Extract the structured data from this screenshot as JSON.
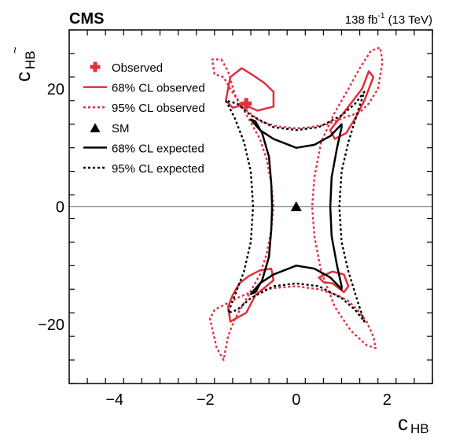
{
  "chart_data": {
    "type": "line",
    "header": {
      "experiment": "CMS",
      "lumi_value": "138 fb",
      "lumi_exp": "-1",
      "lumi_energy": " (13 TeV)"
    },
    "xlabel": {
      "main": "c",
      "sub": "HB"
    },
    "ylabel": {
      "main": "c",
      "sub": "HB",
      "tilde": "~"
    },
    "xlim": [
      -5,
      3
    ],
    "ylim": [
      -30,
      30
    ],
    "x_ticks": [
      -4,
      -2,
      0,
      2
    ],
    "x_tick_labels": [
      "−4",
      "−2",
      "0",
      "2"
    ],
    "y_ticks": [
      -20,
      0,
      20
    ],
    "y_tick_labels": [
      "−20",
      "0",
      "20"
    ],
    "grid": false,
    "legend_position": "top-left",
    "colors": {
      "observed": "#e0303c",
      "expected": "#000000",
      "zero_line": "#888888"
    },
    "legend": [
      {
        "label": "Observed",
        "marker": "cross",
        "color": "#e0303c"
      },
      {
        "label": "68% CL observed",
        "style": "solid",
        "color": "#e0303c"
      },
      {
        "label": "95% CL observed",
        "style": "dotted",
        "color": "#e0303c"
      },
      {
        "label": "SM",
        "marker": "triangle",
        "color": "#000000"
      },
      {
        "label": "68% CL expected",
        "style": "solid",
        "color": "#000000"
      },
      {
        "label": "95% CL expected",
        "style": "dotted",
        "color": "#000000"
      }
    ],
    "best_fit": {
      "x": -1.1,
      "y": 17.5
    },
    "sm_point": {
      "x": 0,
      "y": 0
    },
    "contours": [
      {
        "name": "68% CL observed",
        "style": "solid",
        "color": "#e0303c",
        "paths": [
          [
            [
              -1.55,
              18
            ],
            [
              -1.45,
              22
            ],
            [
              -1.2,
              23.5
            ],
            [
              -0.95,
              22.3
            ],
            [
              -0.7,
              21
            ],
            [
              -0.5,
              19.5
            ],
            [
              -0.5,
              17
            ],
            [
              -0.85,
              16.3
            ],
            [
              -1.15,
              17.3
            ],
            [
              -1.4,
              16.8
            ],
            [
              -1.55,
              18
            ]
          ],
          [
            [
              0.75,
              13
            ],
            [
              0.95,
              15
            ],
            [
              1.15,
              17
            ],
            [
              1.45,
              20
            ],
            [
              1.6,
              23
            ],
            [
              1.7,
              22
            ],
            [
              1.5,
              18
            ],
            [
              1.3,
              15
            ],
            [
              1.1,
              12.5
            ],
            [
              0.85,
              11.5
            ],
            [
              0.75,
              13
            ]
          ],
          [
            [
              -1.4,
              -15
            ],
            [
              -1.25,
              -13
            ],
            [
              -1.05,
              -11.8
            ],
            [
              -0.8,
              -10.8
            ],
            [
              -0.55,
              -10.5
            ],
            [
              -0.5,
              -12.5
            ],
            [
              -0.9,
              -15
            ],
            [
              -1.1,
              -18
            ],
            [
              -1.45,
              -19.5
            ],
            [
              -1.5,
              -17
            ],
            [
              -1.4,
              -15
            ]
          ],
          [
            [
              0.5,
              -12
            ],
            [
              0.8,
              -11
            ],
            [
              1.05,
              -11.5
            ],
            [
              1.15,
              -13.5
            ],
            [
              1.05,
              -14.5
            ],
            [
              0.8,
              -13
            ],
            [
              0.6,
              -12.8
            ],
            [
              0.5,
              -12
            ]
          ]
        ]
      },
      {
        "name": "95% CL observed",
        "style": "dotted",
        "color": "#e0303c",
        "paths": [
          [
            [
              -1.65,
              25
            ],
            [
              -1.5,
              23
            ],
            [
              -1.35,
              19
            ],
            [
              -1.05,
              15
            ],
            [
              -0.8,
              11.5
            ],
            [
              -0.65,
              8
            ],
            [
              -0.55,
              4
            ],
            [
              -0.5,
              0
            ],
            [
              -0.55,
              -4
            ],
            [
              -0.65,
              -8
            ],
            [
              -0.8,
              -11.5
            ],
            [
              -1.05,
              -15
            ],
            [
              -1.35,
              -19
            ],
            [
              -1.5,
              -22
            ],
            [
              -1.6,
              -26
            ],
            [
              -1.75,
              -24
            ],
            [
              -1.9,
              -19
            ],
            [
              -1.8,
              -17.5
            ],
            [
              -1.55,
              -16.5
            ],
            [
              -1.3,
              -15.5
            ],
            [
              -1.0,
              -14.5
            ],
            [
              -0.5,
              -13.8
            ],
            [
              0,
              -13.5
            ],
            [
              0.5,
              -14
            ],
            [
              0.9,
              -15
            ],
            [
              1.15,
              -16
            ],
            [
              1.35,
              -17.5
            ],
            [
              1.55,
              -19.5
            ],
            [
              1.7,
              -22
            ],
            [
              1.75,
              -24
            ],
            [
              1.55,
              -23.5
            ],
            [
              1.2,
              -21
            ],
            [
              0.85,
              -17
            ],
            [
              0.55,
              -11
            ],
            [
              0.4,
              -5
            ],
            [
              0.35,
              0
            ],
            [
              0.4,
              5
            ],
            [
              0.55,
              11
            ],
            [
              0.85,
              16
            ],
            [
              1.15,
              20
            ],
            [
              1.4,
              23.5
            ],
            [
              1.65,
              26.5
            ],
            [
              1.85,
              27
            ],
            [
              1.9,
              24.5
            ],
            [
              1.8,
              20
            ],
            [
              1.6,
              17.5
            ],
            [
              1.4,
              16
            ],
            [
              1.2,
              15.5
            ],
            [
              1.0,
              15
            ],
            [
              0.7,
              14
            ],
            [
              0.3,
              13.5
            ],
            [
              0,
              13.3
            ],
            [
              -0.4,
              13.6
            ],
            [
              -0.8,
              14.5
            ],
            [
              -1.2,
              17
            ],
            [
              -1.45,
              20
            ],
            [
              -1.6,
              22
            ],
            [
              -1.8,
              22.5
            ],
            [
              -1.85,
              25
            ],
            [
              -1.65,
              25
            ]
          ]
        ]
      },
      {
        "name": "68% CL expected",
        "style": "solid",
        "color": "#000000",
        "paths": [
          [
            [
              -0.9,
              14.5
            ],
            [
              -0.75,
              12.5
            ],
            [
              -0.6,
              8.5
            ],
            [
              -0.55,
              4
            ],
            [
              -0.53,
              0
            ],
            [
              -0.55,
              -4
            ],
            [
              -0.6,
              -8.5
            ],
            [
              -0.75,
              -12.5
            ],
            [
              -0.9,
              -14.5
            ],
            [
              -1.0,
              -14.8
            ],
            [
              -0.8,
              -13
            ],
            [
              -0.5,
              -11.5
            ],
            [
              0,
              -10
            ],
            [
              0.4,
              -10.5
            ],
            [
              0.75,
              -12
            ],
            [
              1.0,
              -14
            ],
            [
              1.0,
              -13.5
            ],
            [
              0.9,
              -10
            ],
            [
              0.78,
              -5
            ],
            [
              0.75,
              0
            ],
            [
              0.78,
              5
            ],
            [
              0.9,
              10
            ],
            [
              1.0,
              13.5
            ],
            [
              1.0,
              14
            ],
            [
              0.75,
              12
            ],
            [
              0.4,
              10.5
            ],
            [
              0,
              10
            ],
            [
              -0.5,
              11.5
            ],
            [
              -0.8,
              13
            ],
            [
              -1.0,
              14.8
            ],
            [
              -0.9,
              14.5
            ]
          ]
        ]
      },
      {
        "name": "95% CL expected",
        "style": "dotted",
        "color": "#000000",
        "paths": [
          [
            [
              -1.55,
              18
            ],
            [
              -1.35,
              15
            ],
            [
              -1.15,
              11
            ],
            [
              -1.0,
              6
            ],
            [
              -0.95,
              0
            ],
            [
              -1.0,
              -6
            ],
            [
              -1.15,
              -11
            ],
            [
              -1.35,
              -15
            ],
            [
              -1.5,
              -18
            ],
            [
              -1.3,
              -17.5
            ],
            [
              -1.0,
              -15.5
            ],
            [
              -0.5,
              -13.5
            ],
            [
              0,
              -13
            ],
            [
              0.5,
              -13.5
            ],
            [
              1.0,
              -15.5
            ],
            [
              1.3,
              -17.5
            ],
            [
              1.5,
              -19.5
            ],
            [
              1.35,
              -16
            ],
            [
              1.15,
              -11
            ],
            [
              1.0,
              -6
            ],
            [
              0.95,
              0
            ],
            [
              1.0,
              6
            ],
            [
              1.15,
              11
            ],
            [
              1.35,
              16
            ],
            [
              1.5,
              19.5
            ],
            [
              1.3,
              17.5
            ],
            [
              1.0,
              15.5
            ],
            [
              0.5,
              13.5
            ],
            [
              0,
              13
            ],
            [
              -0.5,
              13.5
            ],
            [
              -1.0,
              15.5
            ],
            [
              -1.3,
              17.5
            ],
            [
              -1.55,
              18
            ]
          ]
        ]
      }
    ]
  }
}
